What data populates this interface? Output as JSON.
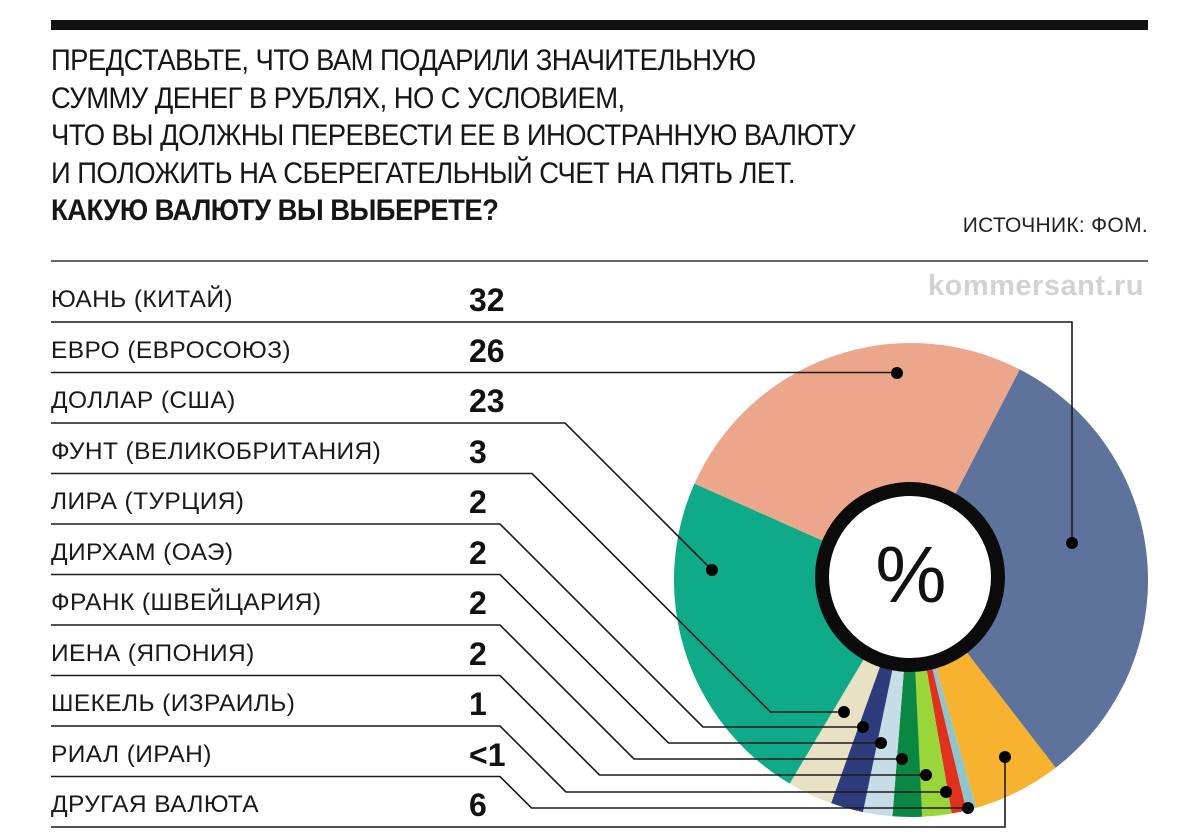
{
  "header": {
    "question_lines": [
      "ПРЕДСТАВЬТЕ, ЧТО ВАМ ПОДАРИЛИ ЗНАЧИТЕЛЬНУЮ",
      "СУММУ ДЕНЕГ В РУБЛЯХ, НО С УСЛОВИЕМ,",
      "ЧТО ВЫ ДОЛЖНЫ ПЕРЕВЕСТИ ЕЕ В ИНОСТРАННУЮ ВАЛЮТУ",
      "И ПОЛОЖИТЬ НА СБЕРЕГАТЕЛЬНЫЙ СЧЕТ НА ПЯТЬ ЛЕТ."
    ],
    "question_bold": "КАКУЮ ВАЛЮТУ ВЫ ВЫБЕРЕТЕ?",
    "source": "ИСТОЧНИК: ФОМ.",
    "watermark": "kommersant.ru"
  },
  "center_label": "%",
  "rows": [
    {
      "label": "ЮАНЬ (КИТАЙ)",
      "value": "32"
    },
    {
      "label": "ЕВРО (ЕВРОСОЮЗ)",
      "value": "26"
    },
    {
      "label": "ДОЛЛАР (США)",
      "value": "23"
    },
    {
      "label": "ФУНТ (ВЕЛИКОБРИТАНИЯ)",
      "value": "3"
    },
    {
      "label": "ЛИРА (ТУРЦИЯ)",
      "value": "2"
    },
    {
      "label": "ДИРХАМ (ОАЭ)",
      "value": "2"
    },
    {
      "label": "ФРАНК (ШВЕЙЦАРИЯ)",
      "value": "2"
    },
    {
      "label": "ИЕНА (ЯПОНИЯ)",
      "value": "2"
    },
    {
      "label": "ШЕКЕЛЬ (ИЗРАИЛЬ)",
      "value": "1"
    },
    {
      "label": "РИАЛ (ИРАН)",
      "value": "<1"
    },
    {
      "label": "ДРУГАЯ ВАЛЮТА",
      "value": "6"
    }
  ],
  "chart_data": {
    "type": "pie",
    "title": "Представьте, что вам подарили значительную сумму денег в рублях, но с условием, что вы должны перевести ее в иностранную валюту и положить на сберегательный счет на пять лет. Какую валюту вы выберете?",
    "unit": "%",
    "source": "ФОМ",
    "categories": [
      "ЮАНЬ (КИТАЙ)",
      "ЕВРО (ЕВРОСОЮЗ)",
      "ДОЛЛАР (США)",
      "ФУНТ (ВЕЛИКОБРИТАНИЯ)",
      "ЛИРА (ТУРЦИЯ)",
      "ДИРХАМ (ОАЭ)",
      "ФРАНК (ШВЕЙЦАРИЯ)",
      "ИЕНА (ЯПОНИЯ)",
      "ШЕКЕЛЬ (ИЗРАИЛЬ)",
      "РИАЛ (ИРАН)",
      "ДРУГАЯ ВАЛЮТА"
    ],
    "values": [
      32,
      26,
      23,
      3,
      2,
      2,
      2,
      2,
      1,
      0.5,
      6
    ],
    "value_labels": [
      "32",
      "26",
      "23",
      "3",
      "2",
      "2",
      "2",
      "2",
      "1",
      "<1",
      "6"
    ],
    "colors": [
      "#5e739c",
      "#eba68c",
      "#0fab88",
      "#e8e1c3",
      "#2e3c7c",
      "#c6dde8",
      "#0a8743",
      "#9ad63a",
      "#e0301e",
      "#90c5cb",
      "#f7b22f"
    ],
    "legend_position": "left",
    "donut_center_label": "%"
  }
}
